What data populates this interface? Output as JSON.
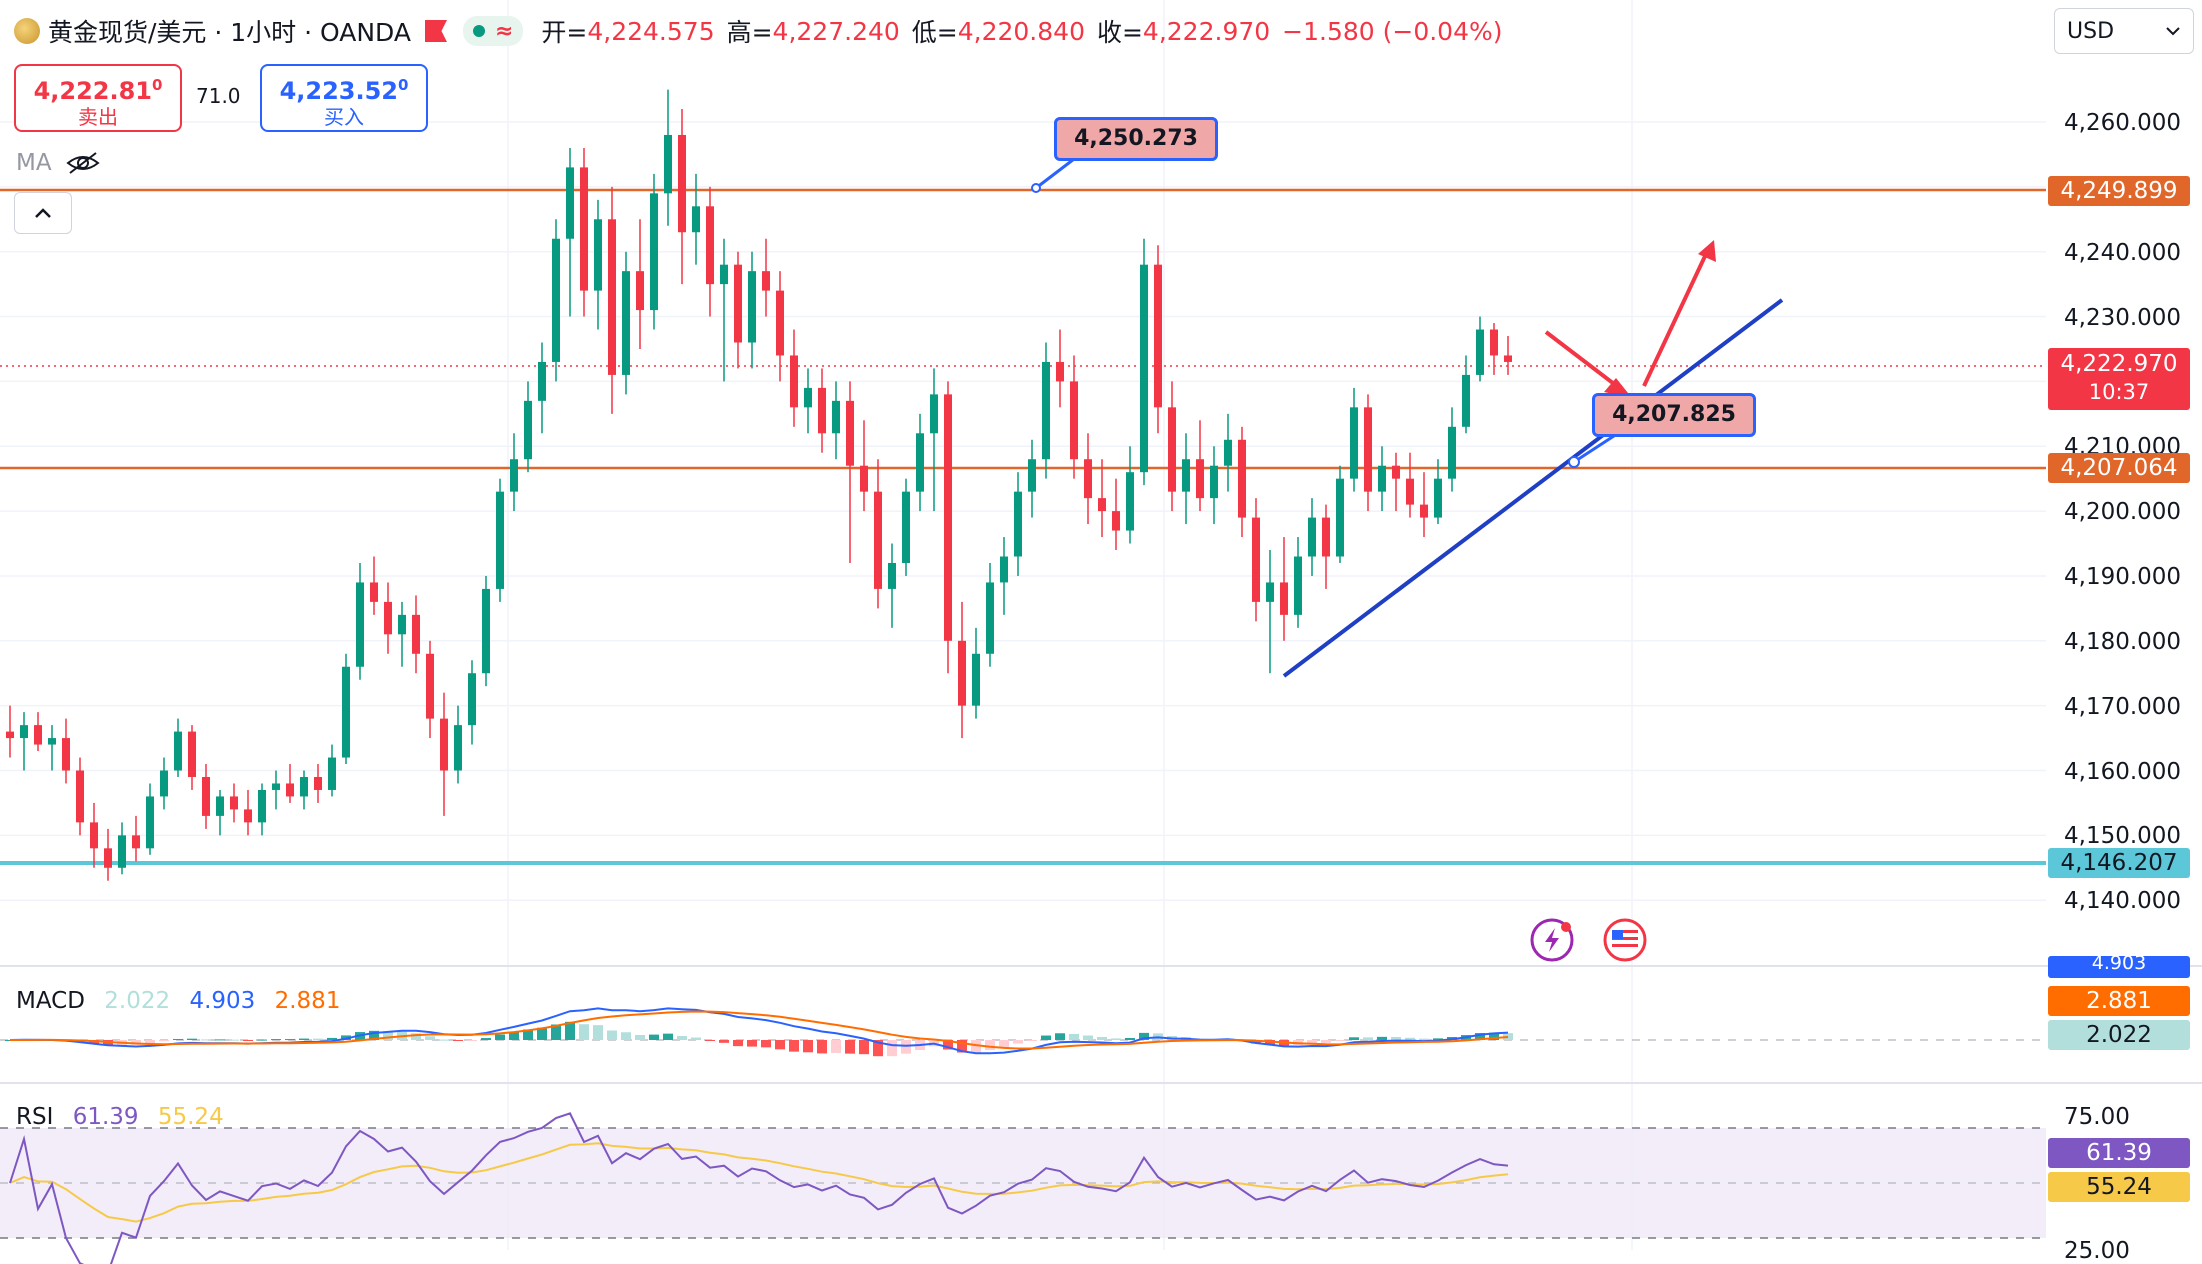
{
  "header": {
    "symbol": "黄金现货/美元 · 1小时 · OANDA",
    "open_label": "开=",
    "open": "4,224.575",
    "high_label": "高=",
    "high": "4,227.240",
    "low_label": "低=",
    "low": "4,220.840",
    "close_label": "收=",
    "close": "4,222.970",
    "change": "−1.580 (−0.04%)",
    "wave_glyph": "≈"
  },
  "trade": {
    "sell_price": "4,222.81",
    "sell_sup": "0",
    "sell_label": "卖出",
    "spread": "71.0",
    "buy_price": "4,223.52",
    "buy_sup": "0",
    "buy_label": "买入"
  },
  "ma_label": "MA",
  "currency": "USD",
  "price_axis": {
    "ticks": [
      "4,260.000",
      "4,240.000",
      "4,230.000",
      "4,210.000",
      "4,200.000",
      "4,190.000",
      "4,180.000",
      "4,170.000",
      "4,160.000",
      "4,150.000",
      "4,140.000"
    ],
    "tags": {
      "resistance": "4,249.899",
      "last_price": "4,222.970",
      "countdown": "10:37",
      "support_mid": "4,207.064",
      "support_low": "4,146.207"
    }
  },
  "annotations": {
    "callout_top": "4,250.273",
    "callout_right": "4,207.825"
  },
  "macd": {
    "label": "MACD",
    "hist": "2.022",
    "macd": "4.903",
    "signal": "2.881",
    "tag_macd": "4.903",
    "tag_signal": "2.881",
    "tag_hist": "2.022"
  },
  "rsi": {
    "label": "RSI",
    "rsi": "61.39",
    "ma": "55.24",
    "upper": "75.00",
    "lower": "25.00",
    "tag_rsi": "61.39",
    "tag_ma": "55.24"
  },
  "colors": {
    "up": "#089981",
    "down": "#f23645",
    "resistance": "#e0662a",
    "support": "#5bc7d8",
    "trendline": "#1f3fc4",
    "arrow": "#f23645",
    "macd_line": "#2962ff",
    "signal_line": "#ff6d00",
    "rsi_line": "#7e57c2",
    "rsi_ma": "#f7c948"
  },
  "chart_data": {
    "type": "candlestick",
    "y_range": [
      4135,
      4268
    ],
    "candles_ohlc": [
      [
        4166,
        4170,
        4162,
        4165
      ],
      [
        4165,
        4169,
        4160,
        4167
      ],
      [
        4167,
        4169,
        4163,
        4164
      ],
      [
        4164,
        4167,
        4160,
        4165
      ],
      [
        4165,
        4168,
        4158,
        4160
      ],
      [
        4160,
        4162,
        4150,
        4152
      ],
      [
        4152,
        4155,
        4145,
        4148
      ],
      [
        4148,
        4151,
        4143,
        4145
      ],
      [
        4145,
        4152,
        4144,
        4150
      ],
      [
        4150,
        4153,
        4146,
        4148
      ],
      [
        4148,
        4158,
        4147,
        4156
      ],
      [
        4156,
        4162,
        4154,
        4160
      ],
      [
        4160,
        4168,
        4159,
        4166
      ],
      [
        4166,
        4167,
        4157,
        4159
      ],
      [
        4159,
        4161,
        4151,
        4153
      ],
      [
        4153,
        4157,
        4150,
        4156
      ],
      [
        4156,
        4158,
        4152,
        4154
      ],
      [
        4154,
        4157,
        4150,
        4152
      ],
      [
        4152,
        4158,
        4150,
        4157
      ],
      [
        4157,
        4160,
        4154,
        4158
      ],
      [
        4158,
        4161,
        4155,
        4156
      ],
      [
        4156,
        4160,
        4154,
        4159
      ],
      [
        4159,
        4161,
        4155,
        4157
      ],
      [
        4157,
        4164,
        4156,
        4162
      ],
      [
        4162,
        4178,
        4161,
        4176
      ],
      [
        4176,
        4192,
        4174,
        4189
      ],
      [
        4189,
        4193,
        4184,
        4186
      ],
      [
        4186,
        4189,
        4178,
        4181
      ],
      [
        4181,
        4186,
        4176,
        4184
      ],
      [
        4184,
        4187,
        4175,
        4178
      ],
      [
        4178,
        4180,
        4165,
        4168
      ],
      [
        4168,
        4172,
        4153,
        4160
      ],
      [
        4160,
        4170,
        4158,
        4167
      ],
      [
        4167,
        4177,
        4164,
        4175
      ],
      [
        4175,
        4190,
        4173,
        4188
      ],
      [
        4188,
        4205,
        4186,
        4203
      ],
      [
        4203,
        4212,
        4200,
        4208
      ],
      [
        4208,
        4220,
        4206,
        4217
      ],
      [
        4217,
        4226,
        4212,
        4223
      ],
      [
        4223,
        4245,
        4220,
        4242
      ],
      [
        4242,
        4256,
        4230,
        4253
      ],
      [
        4253,
        4256,
        4230,
        4234
      ],
      [
        4234,
        4248,
        4228,
        4245
      ],
      [
        4245,
        4250,
        4215,
        4221
      ],
      [
        4221,
        4240,
        4218,
        4237
      ],
      [
        4237,
        4245,
        4225,
        4231
      ],
      [
        4231,
        4252,
        4228,
        4249
      ],
      [
        4249,
        4265,
        4244,
        4258
      ],
      [
        4258,
        4262,
        4235,
        4243
      ],
      [
        4243,
        4252,
        4238,
        4247
      ],
      [
        4247,
        4250,
        4230,
        4235
      ],
      [
        4235,
        4242,
        4220,
        4238
      ],
      [
        4238,
        4240,
        4222,
        4226
      ],
      [
        4226,
        4240,
        4222,
        4237
      ],
      [
        4237,
        4242,
        4230,
        4234
      ],
      [
        4234,
        4237,
        4220,
        4224
      ],
      [
        4224,
        4228,
        4213,
        4216
      ],
      [
        4216,
        4222,
        4212,
        4219
      ],
      [
        4219,
        4222,
        4209,
        4212
      ],
      [
        4212,
        4220,
        4208,
        4217
      ],
      [
        4217,
        4220,
        4192,
        4207
      ],
      [
        4207,
        4214,
        4200,
        4203
      ],
      [
        4203,
        4208,
        4185,
        4188
      ],
      [
        4188,
        4195,
        4182,
        4192
      ],
      [
        4192,
        4205,
        4190,
        4203
      ],
      [
        4203,
        4215,
        4200,
        4212
      ],
      [
        4212,
        4222,
        4200,
        4218
      ],
      [
        4218,
        4220,
        4175,
        4180
      ],
      [
        4180,
        4186,
        4165,
        4170
      ],
      [
        4170,
        4182,
        4168,
        4178
      ],
      [
        4178,
        4192,
        4176,
        4189
      ],
      [
        4189,
        4196,
        4184,
        4193
      ],
      [
        4193,
        4206,
        4190,
        4203
      ],
      [
        4203,
        4211,
        4199,
        4208
      ],
      [
        4208,
        4226,
        4205,
        4223
      ],
      [
        4223,
        4228,
        4216,
        4220
      ],
      [
        4220,
        4224,
        4205,
        4208
      ],
      [
        4208,
        4212,
        4198,
        4202
      ],
      [
        4202,
        4208,
        4196,
        4200
      ],
      [
        4200,
        4205,
        4194,
        4197
      ],
      [
        4197,
        4210,
        4195,
        4206
      ],
      [
        4206,
        4242,
        4204,
        4238
      ],
      [
        4238,
        4241,
        4212,
        4216
      ],
      [
        4216,
        4220,
        4200,
        4203
      ],
      [
        4203,
        4212,
        4198,
        4208
      ],
      [
        4208,
        4214,
        4200,
        4202
      ],
      [
        4202,
        4210,
        4198,
        4207
      ],
      [
        4207,
        4215,
        4203,
        4211
      ],
      [
        4211,
        4213,
        4196,
        4199
      ],
      [
        4199,
        4202,
        4183,
        4186
      ],
      [
        4186,
        4194,
        4175,
        4189
      ],
      [
        4189,
        4196,
        4180,
        4184
      ],
      [
        4184,
        4196,
        4182,
        4193
      ],
      [
        4193,
        4202,
        4190,
        4199
      ],
      [
        4199,
        4201,
        4188,
        4193
      ],
      [
        4193,
        4207,
        4192,
        4205
      ],
      [
        4205,
        4219,
        4203,
        4216
      ],
      [
        4216,
        4218,
        4200,
        4203
      ],
      [
        4203,
        4210,
        4200,
        4207
      ],
      [
        4207,
        4209,
        4200,
        4205
      ],
      [
        4205,
        4209,
        4199,
        4201
      ],
      [
        4201,
        4206,
        4196,
        4199
      ],
      [
        4199,
        4208,
        4198,
        4205
      ],
      [
        4205,
        4216,
        4203,
        4213
      ],
      [
        4213,
        4224,
        4212,
        4221
      ],
      [
        4221,
        4230,
        4220,
        4228
      ],
      [
        4228,
        4229,
        4221,
        4224
      ],
      [
        4224,
        4227,
        4221,
        4223
      ]
    ],
    "levels": [
      4249.899,
      4207.064,
      4146.207
    ],
    "macd": {
      "macd_last": 4.903,
      "signal_last": 2.881,
      "hist_last": 2.022
    },
    "rsi": {
      "last": 61.39,
      "ma_last": 55.24,
      "bands": [
        75,
        25
      ]
    }
  }
}
